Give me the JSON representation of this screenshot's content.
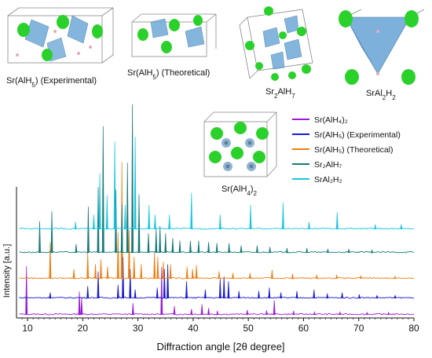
{
  "chart_data": {
    "type": "line",
    "xlabel": "Diffraction angle [2θ degree]",
    "ylabel": "Intensity [a.u.]",
    "xlim": [
      8,
      80
    ],
    "xticks": [
      10,
      20,
      30,
      40,
      50,
      60,
      70,
      80
    ],
    "grid": false,
    "legend_position": "top-right",
    "series": [
      {
        "name": "Sr(AlH4)2",
        "legend_label": "Sr(AlH₄)₂",
        "color": "#9b1bd6",
        "offset": 0,
        "peaks": [
          [
            9.8,
            1.0
          ],
          [
            19.4,
            0.48
          ],
          [
            19.8,
            0.35
          ],
          [
            29.1,
            0.24
          ],
          [
            34.3,
            0.98
          ],
          [
            36.6,
            0.18
          ],
          [
            39.7,
            0.12
          ],
          [
            41.6,
            0.22
          ],
          [
            42.8,
            0.14
          ],
          [
            44.4,
            0.08
          ],
          [
            49.8,
            0.1
          ],
          [
            53.3,
            0.09
          ],
          [
            54.7,
            0.3
          ],
          [
            58.2,
            0.08
          ],
          [
            62.0,
            0.06
          ],
          [
            66.6,
            0.06
          ],
          [
            71.5,
            0.05
          ],
          [
            75.4,
            0.05
          ]
        ]
      },
      {
        "name": "Sr(AlH5) (Experimental)",
        "legend_label": "Sr(AlH₅) (Experimental)",
        "color": "#1a1ad0",
        "offset": 1,
        "peaks": [
          [
            14.1,
            0.12
          ],
          [
            20.9,
            0.25
          ],
          [
            22.8,
            0.55
          ],
          [
            26.4,
            0.28
          ],
          [
            27.3,
            0.85
          ],
          [
            28.6,
            0.6
          ],
          [
            29.5,
            0.18
          ],
          [
            33.5,
            0.22
          ],
          [
            34.8,
            0.6
          ],
          [
            35.4,
            0.7
          ],
          [
            38.8,
            0.35
          ],
          [
            42.2,
            0.18
          ],
          [
            44.9,
            0.4
          ],
          [
            45.6,
            0.45
          ],
          [
            46.4,
            0.35
          ],
          [
            48.3,
            0.15
          ],
          [
            51.9,
            0.15
          ],
          [
            53.8,
            0.22
          ],
          [
            55.9,
            0.12
          ],
          [
            58.8,
            0.15
          ],
          [
            61.9,
            0.18
          ],
          [
            64.3,
            0.1
          ],
          [
            67.0,
            0.12
          ],
          [
            70.1,
            0.08
          ],
          [
            73.3,
            0.06
          ],
          [
            76.6,
            0.06
          ]
        ]
      },
      {
        "name": "Sr(AlH5) (Theoretical)",
        "legend_label": "Sr(AlH₅) (Theoretical)",
        "color": "#f07d0f",
        "offset": 2,
        "peaks": [
          [
            14.1,
            0.75
          ],
          [
            18.4,
            0.2
          ],
          [
            20.9,
            0.55
          ],
          [
            22.3,
            0.3
          ],
          [
            23.3,
            0.4
          ],
          [
            24.5,
            0.25
          ],
          [
            26.4,
            0.95
          ],
          [
            27.1,
            2.4
          ],
          [
            28.4,
            1.0
          ],
          [
            29.3,
            0.45
          ],
          [
            30.6,
            0.3
          ],
          [
            33.0,
            0.55
          ],
          [
            33.6,
            0.45
          ],
          [
            34.6,
            0.35
          ],
          [
            35.9,
            0.3
          ],
          [
            38.9,
            0.25
          ],
          [
            39.9,
            0.2
          ],
          [
            40.6,
            0.28
          ],
          [
            44.7,
            0.15
          ],
          [
            47.2,
            0.12
          ],
          [
            50.3,
            0.12
          ],
          [
            54.3,
            0.18
          ],
          [
            58.0,
            0.1
          ],
          [
            62.4,
            0.08
          ],
          [
            66.0,
            0.08
          ],
          [
            70.4,
            0.06
          ],
          [
            76.6,
            0.05
          ]
        ]
      },
      {
        "name": "Sr2AlH7",
        "legend_label": "Sr₂AlH₇",
        "color": "#157a78",
        "offset": 3,
        "peaks": [
          [
            12.2,
            0.65
          ],
          [
            14.4,
            0.85
          ],
          [
            18.8,
            0.18
          ],
          [
            21.0,
            0.95
          ],
          [
            22.8,
            1.35
          ],
          [
            23.7,
            2.6
          ],
          [
            26.0,
            1.3
          ],
          [
            27.1,
            1.0
          ],
          [
            28.1,
            1.85
          ],
          [
            29.0,
            3.05
          ],
          [
            30.2,
            1.2
          ],
          [
            31.9,
            0.4
          ],
          [
            33.3,
            0.5
          ],
          [
            34.0,
            0.55
          ],
          [
            35.0,
            0.4
          ],
          [
            36.3,
            0.3
          ],
          [
            37.6,
            0.25
          ],
          [
            39.5,
            0.25
          ],
          [
            41.0,
            0.25
          ],
          [
            42.8,
            0.22
          ],
          [
            44.3,
            0.2
          ],
          [
            46.5,
            0.2
          ],
          [
            48.7,
            0.15
          ],
          [
            51.6,
            0.15
          ],
          [
            53.9,
            0.12
          ],
          [
            57.0,
            0.1
          ],
          [
            60.6,
            0.1
          ],
          [
            64.4,
            0.08
          ],
          [
            68.2,
            0.08
          ],
          [
            72.4,
            0.06
          ]
        ]
      },
      {
        "name": "SrAl2H2",
        "legend_label": "SrAl₂H₂",
        "color": "#18c6e4",
        "offset": 4,
        "peaks": [
          [
            18.7,
            0.15
          ],
          [
            22.0,
            0.3
          ],
          [
            23.1,
            1.15
          ],
          [
            24.4,
            0.7
          ],
          [
            25.8,
            1.8
          ],
          [
            27.7,
            0.5
          ],
          [
            29.5,
            1.9
          ],
          [
            32.0,
            0.5
          ],
          [
            33.1,
            0.3
          ],
          [
            35.7,
            0.3
          ],
          [
            39.7,
            0.75
          ],
          [
            44.9,
            0.3
          ],
          [
            50.4,
            0.5
          ],
          [
            56.3,
            0.55
          ],
          [
            61.0,
            0.15
          ],
          [
            66.1,
            0.35
          ],
          [
            73.0,
            0.1
          ],
          [
            77.7,
            0.1
          ]
        ]
      }
    ],
    "structure_labels": [
      {
        "text": "Sr(AlH5) (Experimental)",
        "parts": [
          [
            "Sr(AlH",
            ""
          ],
          [
            "5",
            "sub"
          ],
          [
            ") (Experimental)",
            ""
          ]
        ]
      },
      {
        "text": "Sr(AlH5) (Theoretical)",
        "parts": [
          [
            "Sr(AlH",
            ""
          ],
          [
            "5",
            "sub"
          ],
          [
            ") (Theoretical)",
            ""
          ]
        ]
      },
      {
        "text": "Sr2AlH7",
        "parts": [
          [
            "Sr",
            ""
          ],
          [
            "2",
            "sub"
          ],
          [
            "AlH",
            ""
          ],
          [
            "7",
            "sub"
          ]
        ]
      },
      {
        "text": "SrAl2H2",
        "parts": [
          [
            "SrAl",
            ""
          ],
          [
            "2",
            "sub"
          ],
          [
            "H",
            ""
          ],
          [
            "2",
            "sub"
          ]
        ]
      },
      {
        "text": "Sr(AlH4)2",
        "parts": [
          [
            "Sr(AlH",
            ""
          ],
          [
            "4",
            "sub"
          ],
          [
            ")",
            ""
          ],
          [
            "2",
            "sub"
          ]
        ]
      }
    ],
    "colors": {
      "atom_sr": "#2bd12b",
      "polyhedron": "#6fa9d8",
      "cell_edge": "#7a7a7a",
      "hydrogen": "#e7aab5"
    }
  }
}
